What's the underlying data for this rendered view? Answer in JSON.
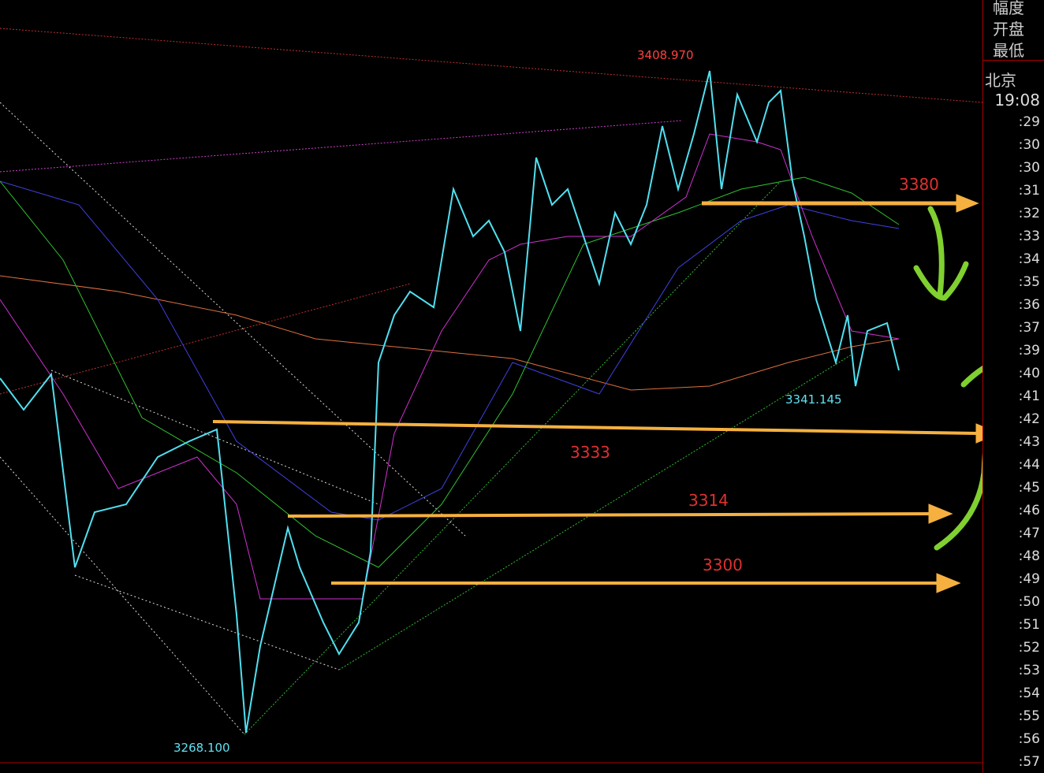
{
  "side_panel": {
    "labels": [
      "幅度",
      "开盘",
      "最低"
    ],
    "zone": "北京",
    "time": "19:08",
    "ticks": [
      ":29",
      ":30",
      ":30",
      ":31",
      ":32",
      ":33",
      ":34",
      ":35",
      ":36",
      ":37",
      ":39",
      ":40",
      ":41",
      ":42",
      ":43",
      ":44",
      ":45",
      ":46",
      ":47",
      ":48",
      ":49",
      ":50",
      ":51",
      ":52",
      ":53",
      ":54",
      ":55",
      ":56",
      ":57"
    ]
  },
  "annotations": {
    "high": "3408.970",
    "low": "3268.100",
    "recent_low": "3341.145",
    "levels": [
      "3380",
      "3333",
      "3314",
      "3300"
    ]
  }
}
